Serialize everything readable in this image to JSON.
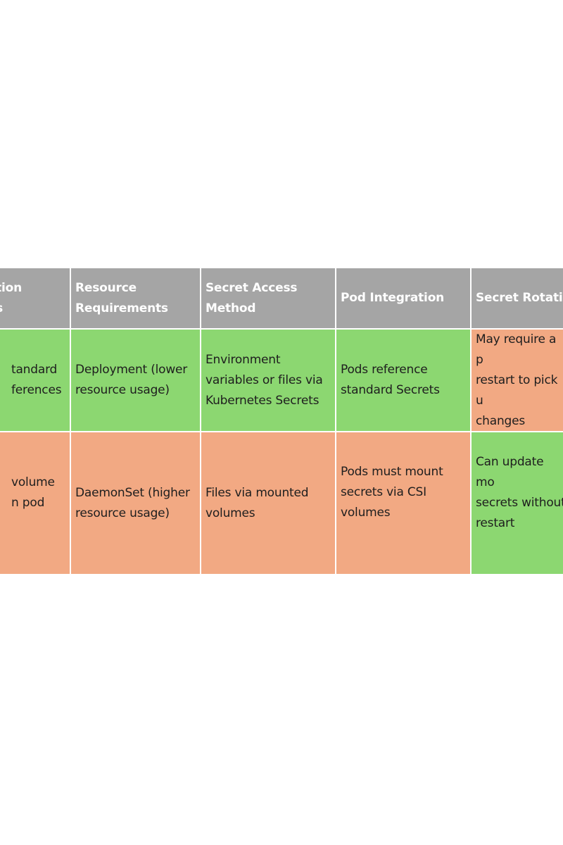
{
  "colors": {
    "header_bg": "#a5a5a5",
    "green": "#8cd771",
    "orange": "#f2a983"
  },
  "table": {
    "headers": [
      "tion\ns",
      "Resource Requirements",
      "Secret Access Method",
      "Pod Integration",
      "Secret Rotatio"
    ],
    "rows": [
      {
        "cells": [
          "tandard\nferences",
          "Deployment (lower resource usage)",
          "Environment variables or files via Kubernetes Secrets",
          "Pods reference standard Secrets",
          "May require a p\nrestart to pick u\nchanges"
        ],
        "colors": [
          "green",
          "green",
          "green",
          "green",
          "orange"
        ]
      },
      {
        "cells": [
          "volume\nn pod",
          "DaemonSet (higher resource usage)",
          "Files via mounted volumes",
          "Pods must mount secrets via CSI volumes",
          "Can update mo\nsecrets without\nrestart"
        ],
        "colors": [
          "orange",
          "orange",
          "orange",
          "orange",
          "green"
        ]
      }
    ]
  }
}
